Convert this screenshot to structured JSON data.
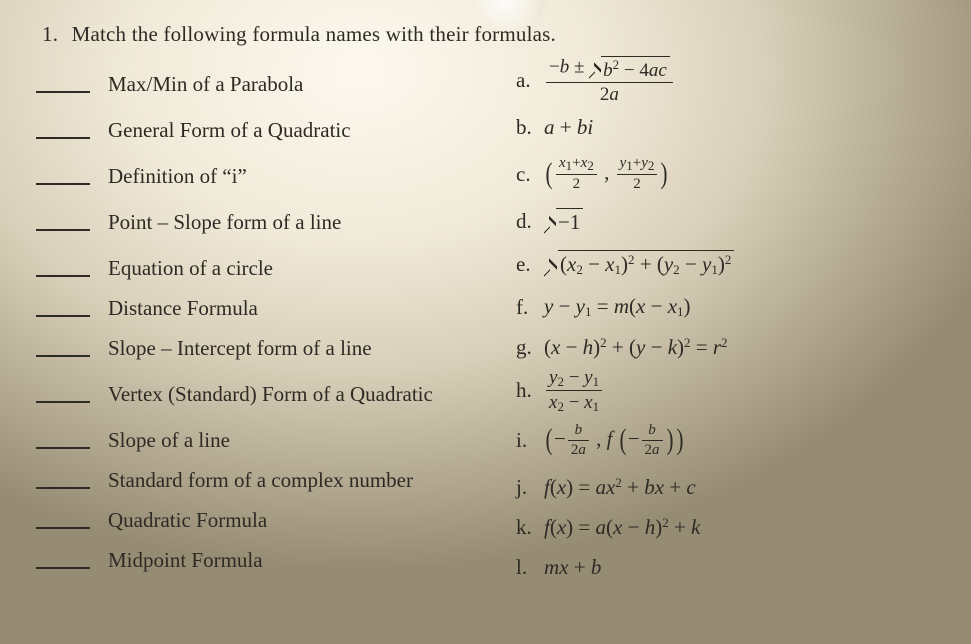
{
  "colors": {
    "text": "#2e2a24",
    "bg_center": "#fdf9ef",
    "bg_outer": "#968c74"
  },
  "typography": {
    "family": "Times New Roman, serif",
    "base_size_pt": 16,
    "sub_size_pt": 10
  },
  "question": {
    "number": "1.",
    "prompt": "Match the following formula names with their formulas."
  },
  "names": [
    {
      "id": "max-min",
      "text": "Max/Min of a Parabola"
    },
    {
      "id": "general-quad",
      "text": "General Form of a Quadratic"
    },
    {
      "id": "def-i",
      "text": "Definition of “i”"
    },
    {
      "id": "point-slope",
      "text": "Point – Slope form of a line"
    },
    {
      "id": "circle",
      "text": "Equation of a circle"
    },
    {
      "id": "distance",
      "text": "Distance Formula"
    },
    {
      "id": "slope-int",
      "text": "Slope – Intercept form of a line"
    },
    {
      "id": "vertex-quad",
      "text": "Vertex (Standard) Form of a Quadratic"
    },
    {
      "id": "slope-line",
      "text": "Slope of a line"
    },
    {
      "id": "std-complex",
      "text": "Standard form of a complex number"
    },
    {
      "id": "quad-formula",
      "text": "Quadratic Formula"
    },
    {
      "id": "midpoint",
      "text": "Midpoint Formula"
    }
  ],
  "formulas": {
    "a": {
      "letter": "a.",
      "type": "fraction",
      "numerator_plain": "−b ± √(b² − 4ac)",
      "denominator": "2a"
    },
    "b": {
      "letter": "b.",
      "type": "expr",
      "expr": "a + bi"
    },
    "c": {
      "letter": "c.",
      "type": "pair_frac",
      "x_num": "x₁ + x₂",
      "x_den": "2",
      "y_num": "y₁ + y₂",
      "y_den": "2"
    },
    "d": {
      "letter": "d.",
      "type": "sqrt",
      "radicand": "−1"
    },
    "e": {
      "letter": "e.",
      "type": "sqrt_long",
      "radicand": "(x₂ − x₁)² + (y₂ − y₁)²"
    },
    "f": {
      "letter": "f.",
      "type": "expr",
      "expr": "y − y₁ = m(x − x₁)"
    },
    "g": {
      "letter": "g.",
      "type": "expr",
      "expr": "(x − h)² + (y − k)² = r²"
    },
    "h": {
      "letter": "h.",
      "type": "fraction",
      "numerator": "y₂ − y₁",
      "denominator": "x₂ − x₁"
    },
    "i": {
      "letter": "i.",
      "type": "vertex_pair",
      "arg_num": "b",
      "arg_den": "2a"
    },
    "j": {
      "letter": "j.",
      "type": "expr",
      "expr": "f(x) = ax² + bx + c"
    },
    "k": {
      "letter": "k.",
      "type": "expr",
      "expr": "f(x) = a(x − h)² + k"
    },
    "l": {
      "letter": "l.",
      "type": "expr",
      "expr": "mx + b"
    }
  }
}
